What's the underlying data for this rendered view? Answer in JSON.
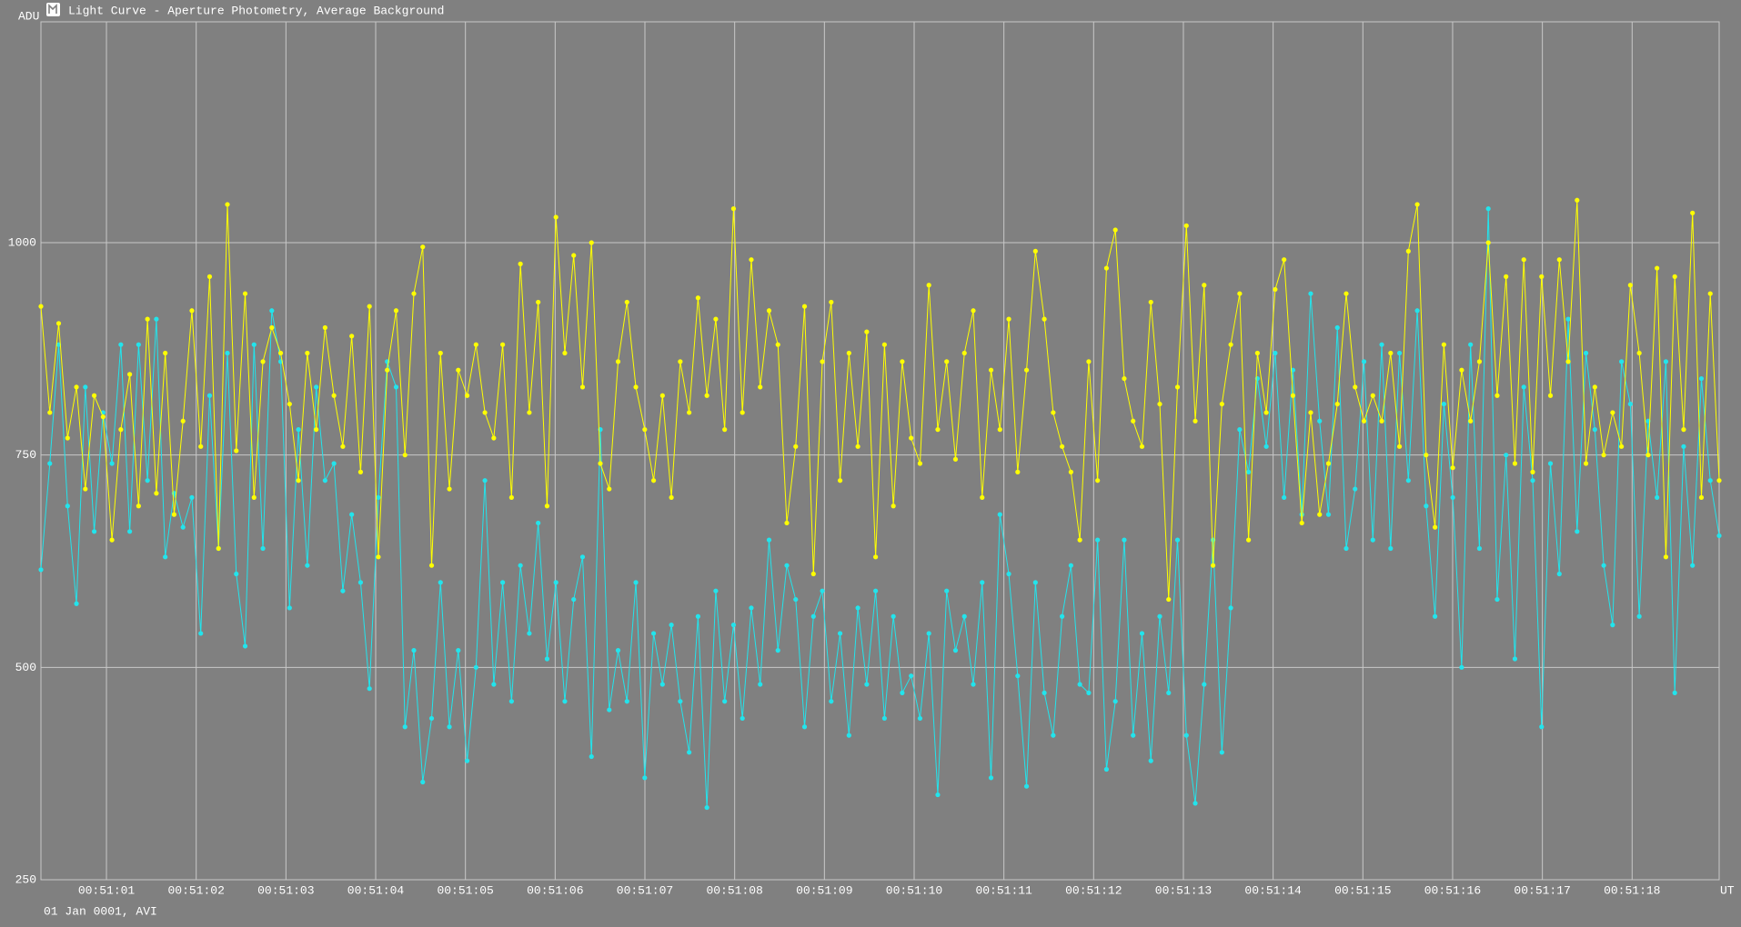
{
  "chart_data": {
    "type": "line",
    "title": "Light Curve - Aperture Photometry, Average Background",
    "ylabel": "ADU",
    "xlabel": "UT",
    "annotation": "01 Jan 0001, AVI",
    "xlim": [
      0.27,
      18.97
    ],
    "xticks": [
      {
        "value": 1,
        "label": "00:51:01"
      },
      {
        "value": 2,
        "label": "00:51:02"
      },
      {
        "value": 3,
        "label": "00:51:03"
      },
      {
        "value": 4,
        "label": "00:51:04"
      },
      {
        "value": 5,
        "label": "00:51:05"
      },
      {
        "value": 6,
        "label": "00:51:06"
      },
      {
        "value": 7,
        "label": "00:51:07"
      },
      {
        "value": 8,
        "label": "00:51:08"
      },
      {
        "value": 9,
        "label": "00:51:09"
      },
      {
        "value": 10,
        "label": "00:51:10"
      },
      {
        "value": 11,
        "label": "00:51:11"
      },
      {
        "value": 12,
        "label": "00:51:12"
      },
      {
        "value": 13,
        "label": "00:51:13"
      },
      {
        "value": 14,
        "label": "00:51:14"
      },
      {
        "value": 15,
        "label": "00:51:15"
      },
      {
        "value": 16,
        "label": "00:51:16"
      },
      {
        "value": 17,
        "label": "00:51:17"
      },
      {
        "value": 18,
        "label": "00:51:18"
      }
    ],
    "ylim": [
      250,
      1260
    ],
    "yticks": [
      250,
      500,
      750,
      1000
    ],
    "grid": true,
    "series": [
      {
        "color": "#22e4ec",
        "values": [
          615,
          740,
          880,
          690,
          575,
          830,
          660,
          800,
          740,
          880,
          660,
          880,
          720,
          910,
          630,
          705,
          665,
          700,
          540,
          820,
          640,
          870,
          610,
          525,
          880,
          640,
          920,
          860,
          570,
          780,
          620,
          830,
          720,
          740,
          590,
          680,
          600,
          475,
          700,
          860,
          830,
          430,
          520,
          365,
          440,
          600,
          430,
          520,
          390,
          500,
          720,
          480,
          600,
          460,
          620,
          540,
          670,
          510,
          600,
          460,
          580,
          630,
          395,
          780,
          450,
          520,
          460,
          600,
          370,
          540,
          480,
          550,
          460,
          400,
          560,
          335,
          590,
          460,
          550,
          440,
          570,
          480,
          650,
          520,
          620,
          580,
          430,
          560,
          590,
          460,
          540,
          420,
          570,
          480,
          590,
          440,
          560,
          470,
          490,
          440,
          540,
          350,
          590,
          520,
          560,
          480,
          600,
          370,
          680,
          610,
          490,
          360,
          600,
          470,
          420,
          560,
          620,
          480,
          470,
          650,
          380,
          460,
          650,
          420,
          540,
          390,
          560,
          470,
          650,
          420,
          340,
          480,
          650,
          400,
          570,
          780,
          730,
          840,
          760,
          870,
          700,
          850,
          680,
          940,
          790,
          680,
          900,
          640,
          710,
          860,
          650,
          880,
          640,
          870,
          720,
          920,
          690,
          560,
          810,
          700,
          500,
          880,
          640,
          1040,
          580,
          750,
          510,
          830,
          720,
          430,
          740,
          610,
          910,
          660,
          870,
          780,
          620,
          550,
          860,
          810,
          560,
          790,
          700,
          860,
          470,
          760,
          620,
          840,
          720,
          655
        ]
      },
      {
        "color": "#ffff00",
        "values": [
          925,
          800,
          905,
          770,
          830,
          710,
          820,
          795,
          650,
          780,
          845,
          690,
          910,
          705,
          870,
          680,
          790,
          920,
          760,
          960,
          640,
          1045,
          755,
          940,
          700,
          860,
          900,
          870,
          810,
          720,
          870,
          780,
          900,
          820,
          760,
          890,
          730,
          925,
          630,
          850,
          920,
          750,
          940,
          995,
          620,
          870,
          710,
          850,
          820,
          880,
          800,
          770,
          880,
          700,
          975,
          800,
          930,
          690,
          1030,
          870,
          985,
          830,
          1000,
          740,
          710,
          860,
          930,
          830,
          780,
          720,
          820,
          700,
          860,
          800,
          935,
          820,
          910,
          780,
          1040,
          800,
          980,
          830,
          920,
          880,
          670,
          760,
          925,
          610,
          860,
          930,
          720,
          870,
          760,
          895,
          630,
          880,
          690,
          860,
          770,
          740,
          950,
          780,
          860,
          745,
          870,
          920,
          700,
          850,
          780,
          910,
          730,
          850,
          990,
          910,
          800,
          760,
          730,
          650,
          860,
          720,
          970,
          1015,
          840,
          790,
          760,
          930,
          810,
          580,
          830,
          1020,
          790,
          950,
          620,
          810,
          880,
          940,
          650,
          870,
          800,
          945,
          980,
          820,
          670,
          800,
          680,
          740,
          810,
          940,
          830,
          790,
          820,
          790,
          870,
          760,
          990,
          1045,
          750,
          665,
          880,
          735,
          850,
          790,
          860,
          1000,
          820,
          960,
          740,
          980,
          730,
          960,
          820,
          980,
          860,
          1050,
          740,
          830,
          750,
          800,
          760,
          950,
          870,
          750,
          970,
          630,
          960,
          780,
          1035,
          700,
          940,
          720
        ]
      }
    ]
  }
}
